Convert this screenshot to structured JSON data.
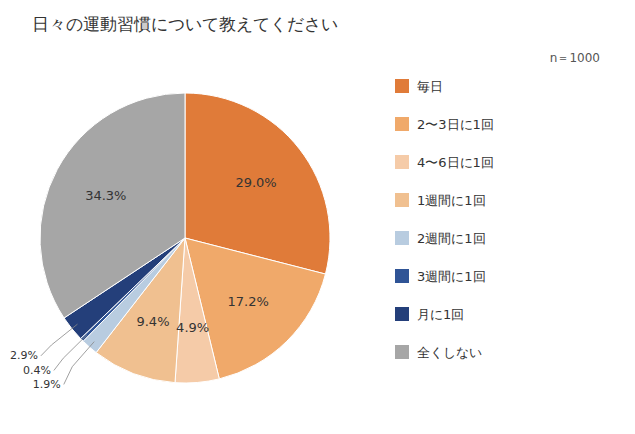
{
  "chart_data": {
    "type": "pie",
    "title": "日々の運動習慣について教えてください",
    "annotations": [
      "n＝1000"
    ],
    "categories": [
      "毎日",
      "2〜3日に1回",
      "4〜6日に1回",
      "1週間に1回",
      "2週間に1回",
      "3週間に1回",
      "月に1回",
      "全くしない"
    ],
    "values": [
      29.0,
      17.2,
      4.9,
      9.4,
      1.9,
      0.4,
      2.9,
      34.3
    ],
    "value_labels": [
      "29.0%",
      "17.2%",
      "4.9%",
      "9.4%",
      "1.9%",
      "0.4%",
      "2.9%",
      "34.3%"
    ],
    "colors": [
      "#E07B39",
      "#F0A96A",
      "#F5CBA8",
      "#F0C090",
      "#B8CCE0",
      "#2F5496",
      "#243F7A",
      "#A6A6A6"
    ],
    "data_labels": true,
    "legend": "right"
  }
}
